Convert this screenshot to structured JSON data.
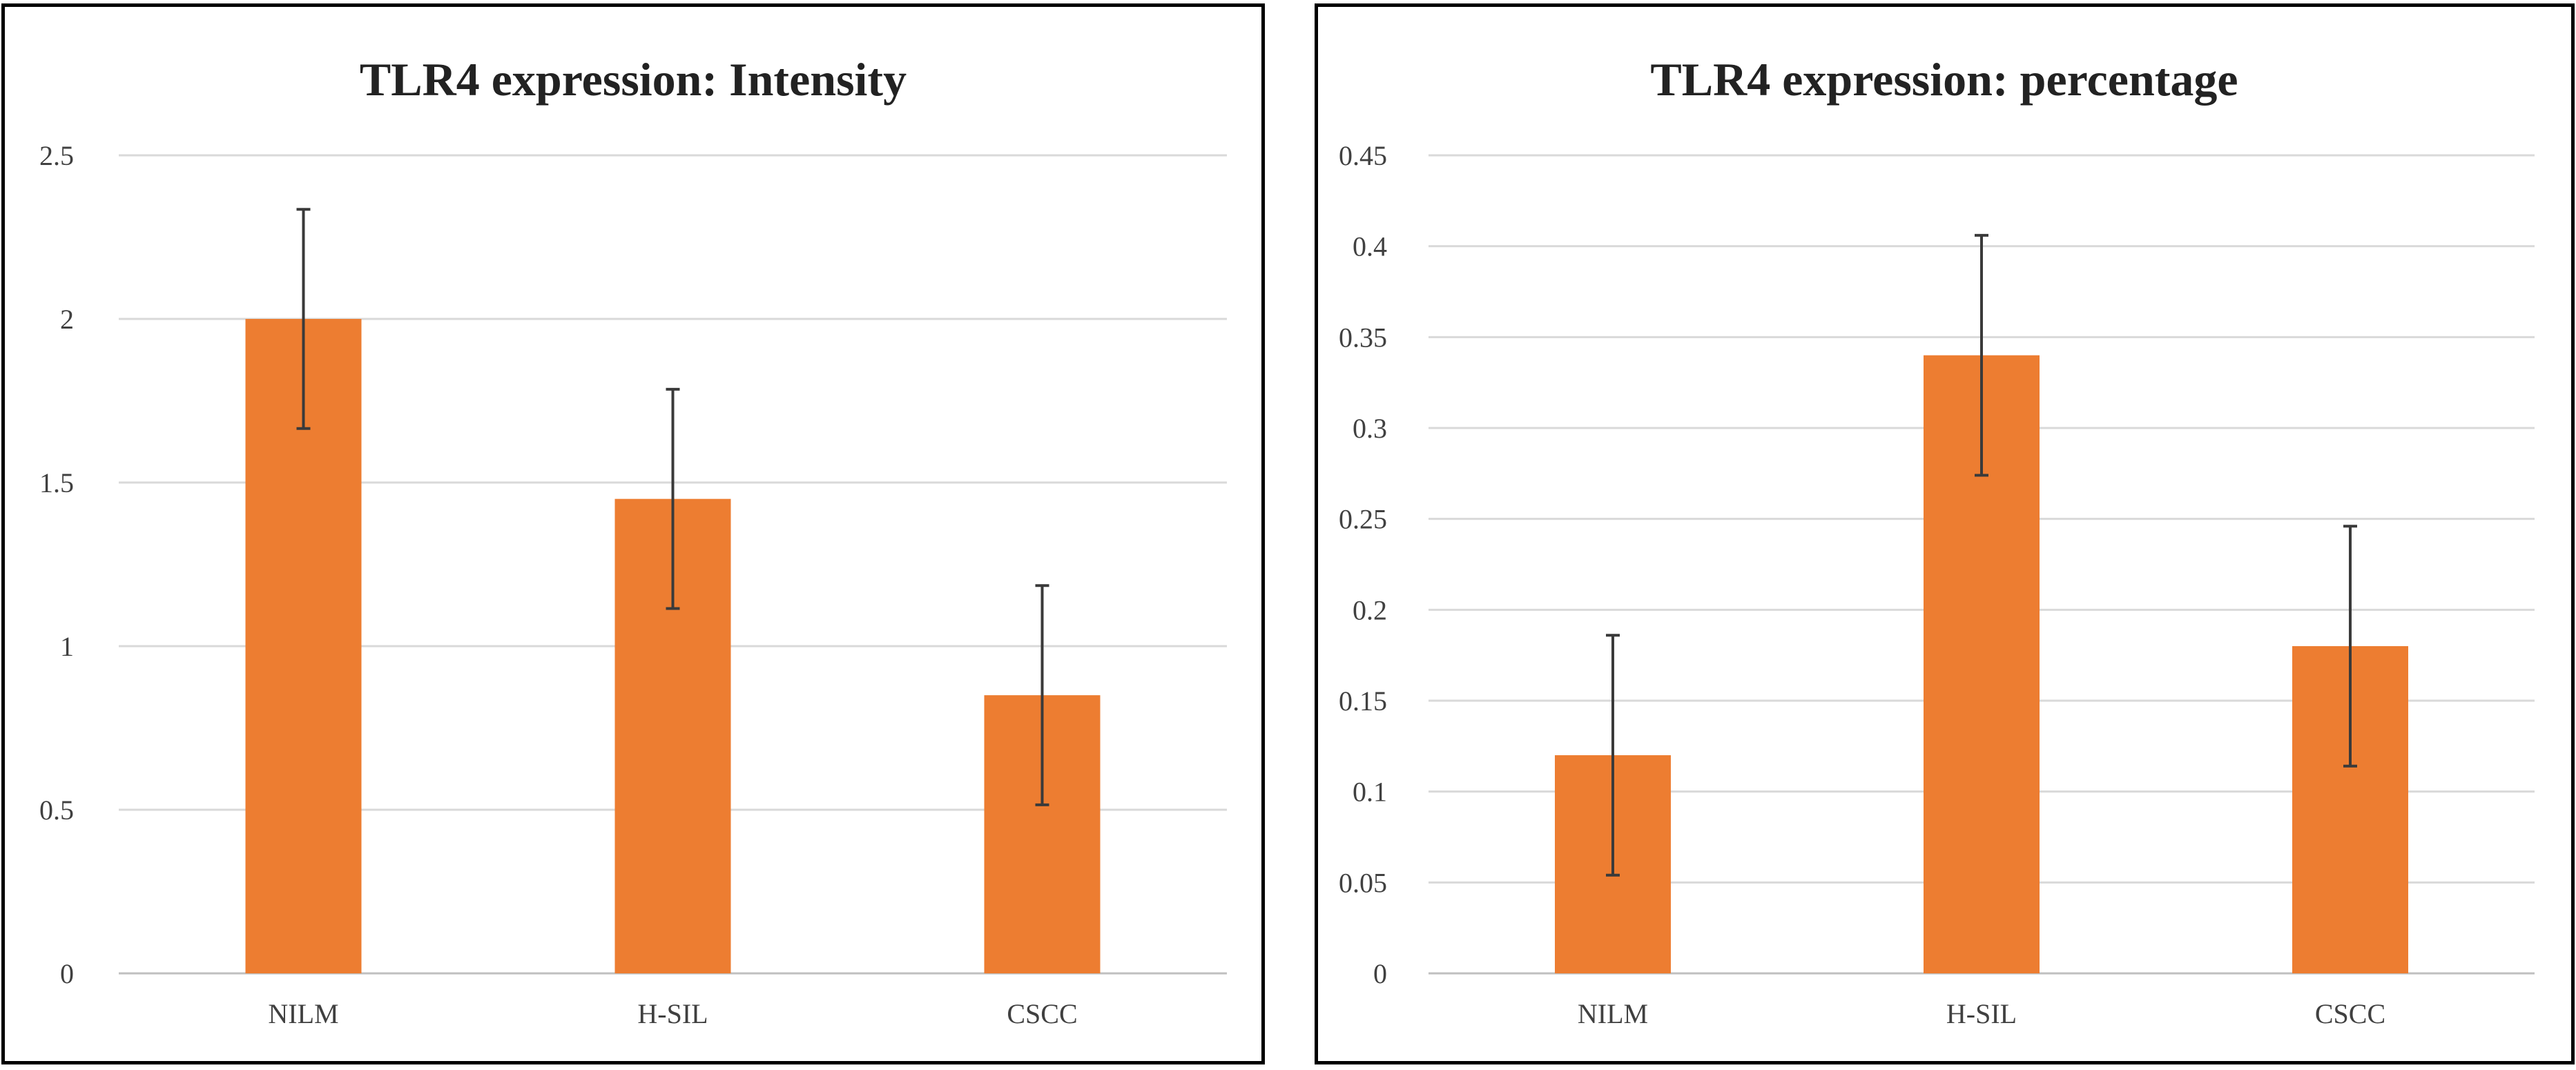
{
  "chart_data": [
    {
      "type": "bar",
      "title": "TLR4 expression: Intensity",
      "categories": [
        "NILM",
        "H-SIL",
        "CSCC"
      ],
      "values": [
        2.0,
        1.45,
        0.85
      ],
      "error_upper": [
        2.335,
        1.785,
        1.185
      ],
      "error_lower": [
        1.665,
        1.115,
        0.515
      ],
      "ylim": [
        0,
        2.5
      ],
      "yticks": [
        "0",
        "0.5",
        "1",
        "1.5",
        "2",
        "2.5"
      ],
      "ytick_values": [
        0,
        0.5,
        1,
        1.5,
        2,
        2.5
      ],
      "xlabel": "",
      "ylabel": "",
      "grid": true,
      "bar_color": "#ed7d31"
    },
    {
      "type": "bar",
      "title": "TLR4 expression: percentage",
      "categories": [
        "NILM",
        "H-SIL",
        "CSCC"
      ],
      "values": [
        0.12,
        0.34,
        0.18
      ],
      "error_upper": [
        0.186,
        0.406,
        0.246
      ],
      "error_lower": [
        0.054,
        0.274,
        0.114
      ],
      "ylim": [
        0,
        0.45
      ],
      "yticks": [
        "0",
        "0.05",
        "0.1",
        "0.15",
        "0.2",
        "0.25",
        "0.3",
        "0.35",
        "0.4",
        "0.45"
      ],
      "ytick_values": [
        0,
        0.05,
        0.1,
        0.15,
        0.2,
        0.25,
        0.3,
        0.35,
        0.4,
        0.45
      ],
      "xlabel": "",
      "ylabel": "",
      "grid": true,
      "bar_color": "#ed7d31"
    }
  ]
}
